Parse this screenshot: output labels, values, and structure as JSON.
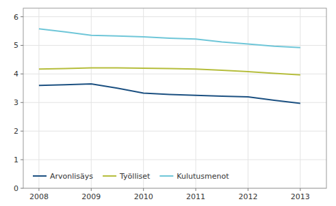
{
  "chart_data": {
    "type": "line",
    "x": [
      2008,
      2008.5,
      2009,
      2009.5,
      2010,
      2010.5,
      2011,
      2011.5,
      2012,
      2012.5,
      2013
    ],
    "series": [
      {
        "name": "Arvonlisäys",
        "color": "#1a4f80",
        "values": [
          3.6,
          3.62,
          3.65,
          3.5,
          3.33,
          3.28,
          3.25,
          3.22,
          3.2,
          3.08,
          2.97
        ]
      },
      {
        "name": "Työlliset",
        "color": "#b5bd3b",
        "values": [
          4.17,
          4.19,
          4.21,
          4.21,
          4.2,
          4.19,
          4.17,
          4.13,
          4.08,
          4.02,
          3.97
        ]
      },
      {
        "name": "Kulutusmenot",
        "color": "#6ec6d8",
        "values": [
          5.58,
          5.47,
          5.35,
          5.33,
          5.3,
          5.25,
          5.22,
          5.12,
          5.05,
          4.97,
          4.92
        ]
      }
    ],
    "xlim": [
      2007.7,
      2013.5
    ],
    "ylim": [
      0,
      6.3
    ],
    "xticks": [
      2008,
      2009,
      2010,
      2011,
      2012,
      2013
    ],
    "yticks": [
      0,
      1,
      2,
      3,
      4,
      5,
      6
    ],
    "grid": true,
    "legend": "lower left"
  }
}
